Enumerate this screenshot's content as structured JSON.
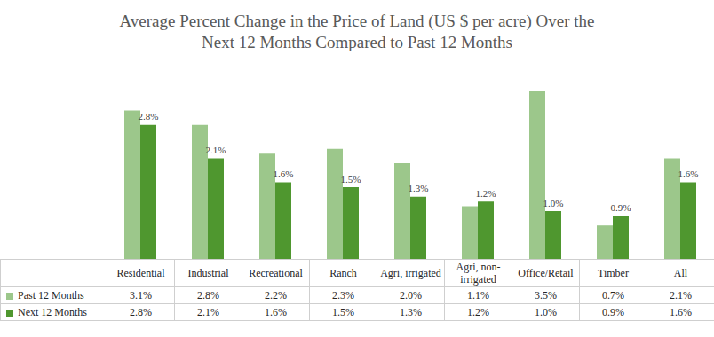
{
  "chart_data": {
    "type": "bar",
    "title": "Average Percent Change in the Price of Land (US $ per acre) Over the\nNext 12 Months Compared to Past 12 Months",
    "categories": [
      "Residential",
      "Industrial",
      "Recreational",
      "Ranch",
      "Agri, irrigated",
      "Agri, non-irrigated",
      "Office/Retail",
      "Timber",
      "All"
    ],
    "series": [
      {
        "name": "Past 12 Months",
        "color": "#9cc78b",
        "values": [
          3.1,
          2.8,
          2.2,
          2.3,
          2.0,
          1.1,
          3.5,
          0.7,
          2.1
        ],
        "value_labels": [
          "3.1%",
          "2.8%",
          "2.2%",
          "2.3%",
          "2.0%",
          "1.1%",
          "3.5%",
          "0.7%",
          "2.1%"
        ],
        "data_labels": false
      },
      {
        "name": "Next 12 Months",
        "color": "#4f972f",
        "values": [
          2.8,
          2.1,
          1.6,
          1.5,
          1.3,
          1.2,
          1.0,
          0.9,
          1.6
        ],
        "value_labels": [
          "2.8%",
          "2.1%",
          "1.6%",
          "1.5%",
          "1.3%",
          "1.2%",
          "1.0%",
          "0.9%",
          "1.6%"
        ],
        "data_labels": true
      }
    ],
    "ylim": [
      0,
      4
    ],
    "grid": false,
    "tick_labels": false
  }
}
